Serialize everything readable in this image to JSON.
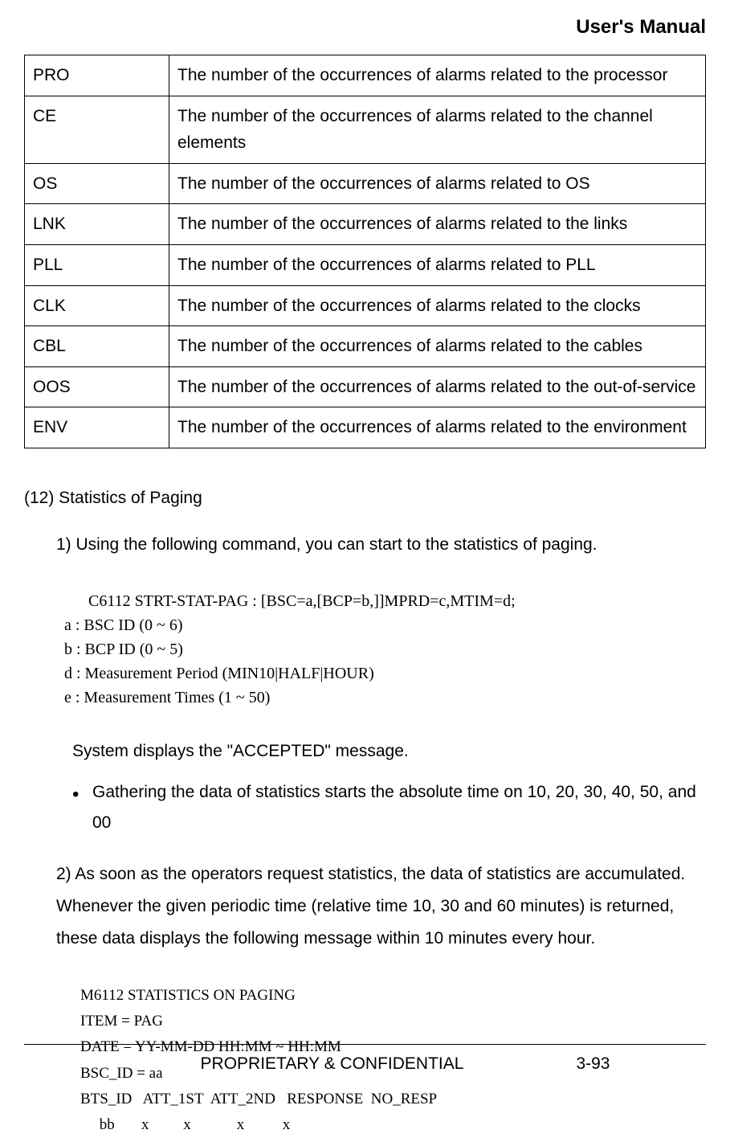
{
  "header": {
    "title": "User's Manual"
  },
  "alarm_table": {
    "rows": [
      {
        "code": "PRO",
        "description": "The number of the occurrences of alarms related to the processor"
      },
      {
        "code": "CE",
        "description": "The number of the occurrences of alarms related to the channel elements"
      },
      {
        "code": "OS",
        "description": "The number of the occurrences of alarms related to OS"
      },
      {
        "code": "LNK",
        "description": "The number of the occurrences of alarms related to the links"
      },
      {
        "code": "PLL",
        "description": "The number of the occurrences of alarms related to PLL"
      },
      {
        "code": "CLK",
        "description": "The number of the occurrences of alarms related to the clocks"
      },
      {
        "code": "CBL",
        "description": "The number of the occurrences of alarms related to the cables"
      },
      {
        "code": "OOS",
        "description": "The number of the occurrences of alarms related to the out-of-service"
      },
      {
        "code": "ENV",
        "description": "The number of the occurrences of alarms related to the environment"
      }
    ]
  },
  "section": {
    "number": "(12) Statistics of Paging",
    "step1": "1) Using the following command, you can start to the statistics of paging.",
    "command": {
      "line": "C6112 STRT-STAT-PAG : [BSC=a,[BCP=b,]]MPRD=c,MTIM=d;",
      "params": [
        "a : BSC ID (0 ~ 6)",
        "b : BCP ID (0 ~ 5)",
        "d : Measurement Period (MIN10|HALF|HOUR)",
        "e : Measurement Times (1 ~ 50)"
      ]
    },
    "system_message": "System displays the \"ACCEPTED\" message.",
    "bullet": "Gathering the data of statistics starts the absolute time on 10, 20, 30, 40, 50, and 00",
    "step2": "2) As soon as the operators request statistics, the data of statistics are accumulated. Whenever the given periodic time (relative time 10, 30 and 60 minutes) is returned, these data displays the following message within 10 minutes every hour.",
    "output": [
      "M6112 STATISTICS ON PAGING",
      "ITEM = PAG",
      "DATE = YY-MM-DD HH:MM ~ HH:MM",
      "BSC_ID = aa",
      "BTS_ID   ATT_1ST  ATT_2ND   RESPONSE  NO_RESP",
      "     bb       x         x            x          x"
    ]
  },
  "footer": {
    "left": "PROPRIETARY & CONFIDENTIAL",
    "right": "3-93"
  }
}
